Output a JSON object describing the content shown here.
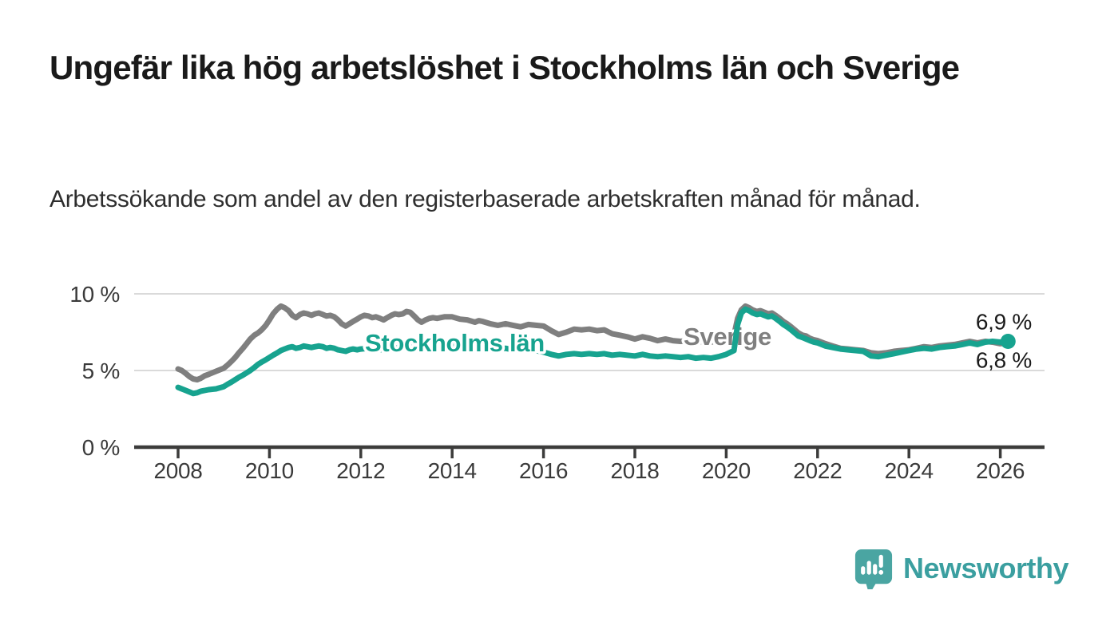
{
  "header": {
    "title": "Ungefär lika hög arbetslöshet i Stockholms län och Sverige",
    "subtitle": "Arbetssökande som andel av den registerbaserade arbetskraften månad för månad."
  },
  "footer": {
    "brand": "Newsworthy"
  },
  "colors": {
    "stockholm": "#17a38f",
    "sverige": "#7f7f7f",
    "axis": "#3c3c3b",
    "grid": "#dadada",
    "text": "#1a1a1a",
    "logo_badge": "#4aa5a2",
    "logo_text": "#3b9fa0"
  },
  "chart_data": {
    "type": "line",
    "title": "",
    "xlabel": "",
    "ylabel": "",
    "grid": "horizontal-only",
    "legend_position": "inline-labels",
    "x_range": [
      2007.0,
      2027.0
    ],
    "ylim": [
      0,
      10.5
    ],
    "x_ticks": [
      2008,
      2010,
      2012,
      2014,
      2016,
      2018,
      2020,
      2022,
      2024,
      2026
    ],
    "y_ticks": [
      {
        "value": 0,
        "label": "0 %"
      },
      {
        "value": 5,
        "label": "5 %"
      },
      {
        "value": 10,
        "label": "10 %"
      }
    ],
    "series": [
      {
        "name": "Sverige",
        "color_key": "sverige",
        "end_label": "6,8 %",
        "end_label_position": "below",
        "end_dot": false,
        "points": [
          [
            2008.0,
            5.1
          ],
          [
            2008.08,
            5.0
          ],
          [
            2008.17,
            4.8
          ],
          [
            2008.25,
            4.6
          ],
          [
            2008.33,
            4.45
          ],
          [
            2008.42,
            4.4
          ],
          [
            2008.5,
            4.5
          ],
          [
            2008.58,
            4.65
          ],
          [
            2008.67,
            4.75
          ],
          [
            2008.83,
            4.95
          ],
          [
            2009.0,
            5.15
          ],
          [
            2009.08,
            5.35
          ],
          [
            2009.17,
            5.6
          ],
          [
            2009.25,
            5.85
          ],
          [
            2009.33,
            6.15
          ],
          [
            2009.42,
            6.45
          ],
          [
            2009.5,
            6.75
          ],
          [
            2009.58,
            7.05
          ],
          [
            2009.67,
            7.3
          ],
          [
            2009.75,
            7.45
          ],
          [
            2009.83,
            7.65
          ],
          [
            2009.92,
            7.95
          ],
          [
            2010.0,
            8.3
          ],
          [
            2010.08,
            8.7
          ],
          [
            2010.17,
            9.0
          ],
          [
            2010.25,
            9.2
          ],
          [
            2010.33,
            9.1
          ],
          [
            2010.42,
            8.9
          ],
          [
            2010.5,
            8.6
          ],
          [
            2010.58,
            8.45
          ],
          [
            2010.67,
            8.65
          ],
          [
            2010.75,
            8.75
          ],
          [
            2010.83,
            8.7
          ],
          [
            2010.92,
            8.6
          ],
          [
            2011.0,
            8.7
          ],
          [
            2011.08,
            8.75
          ],
          [
            2011.17,
            8.65
          ],
          [
            2011.25,
            8.55
          ],
          [
            2011.33,
            8.6
          ],
          [
            2011.42,
            8.5
          ],
          [
            2011.5,
            8.3
          ],
          [
            2011.58,
            8.05
          ],
          [
            2011.67,
            7.9
          ],
          [
            2011.75,
            8.05
          ],
          [
            2011.83,
            8.2
          ],
          [
            2011.92,
            8.35
          ],
          [
            2012.0,
            8.5
          ],
          [
            2012.08,
            8.6
          ],
          [
            2012.17,
            8.55
          ],
          [
            2012.25,
            8.45
          ],
          [
            2012.33,
            8.5
          ],
          [
            2012.42,
            8.4
          ],
          [
            2012.5,
            8.3
          ],
          [
            2012.58,
            8.45
          ],
          [
            2012.67,
            8.6
          ],
          [
            2012.75,
            8.7
          ],
          [
            2012.83,
            8.65
          ],
          [
            2012.92,
            8.7
          ],
          [
            2013.0,
            8.85
          ],
          [
            2013.08,
            8.8
          ],
          [
            2013.17,
            8.55
          ],
          [
            2013.25,
            8.3
          ],
          [
            2013.33,
            8.15
          ],
          [
            2013.42,
            8.3
          ],
          [
            2013.5,
            8.4
          ],
          [
            2013.58,
            8.45
          ],
          [
            2013.67,
            8.4
          ],
          [
            2013.83,
            8.5
          ],
          [
            2014.0,
            8.5
          ],
          [
            2014.17,
            8.35
          ],
          [
            2014.33,
            8.3
          ],
          [
            2014.5,
            8.15
          ],
          [
            2014.58,
            8.25
          ],
          [
            2014.67,
            8.2
          ],
          [
            2014.83,
            8.05
          ],
          [
            2015.0,
            7.95
          ],
          [
            2015.17,
            8.05
          ],
          [
            2015.33,
            7.95
          ],
          [
            2015.5,
            7.85
          ],
          [
            2015.67,
            8.0
          ],
          [
            2015.83,
            7.95
          ],
          [
            2016.0,
            7.9
          ],
          [
            2016.17,
            7.6
          ],
          [
            2016.33,
            7.35
          ],
          [
            2016.5,
            7.5
          ],
          [
            2016.67,
            7.7
          ],
          [
            2016.83,
            7.65
          ],
          [
            2017.0,
            7.7
          ],
          [
            2017.17,
            7.6
          ],
          [
            2017.33,
            7.65
          ],
          [
            2017.5,
            7.4
          ],
          [
            2017.67,
            7.3
          ],
          [
            2017.83,
            7.2
          ],
          [
            2018.0,
            7.05
          ],
          [
            2018.17,
            7.2
          ],
          [
            2018.33,
            7.1
          ],
          [
            2018.5,
            6.95
          ],
          [
            2018.67,
            7.05
          ],
          [
            2018.83,
            6.95
          ],
          [
            2019.0,
            6.9
          ],
          [
            2019.17,
            6.95
          ],
          [
            2019.33,
            6.85
          ],
          [
            2019.5,
            6.9
          ],
          [
            2019.67,
            6.85
          ],
          [
            2019.83,
            6.95
          ],
          [
            2020.0,
            7.1
          ],
          [
            2020.17,
            7.3
          ],
          [
            2020.25,
            8.4
          ],
          [
            2020.33,
            8.95
          ],
          [
            2020.42,
            9.2
          ],
          [
            2020.5,
            9.1
          ],
          [
            2020.58,
            8.95
          ],
          [
            2020.67,
            8.85
          ],
          [
            2020.75,
            8.9
          ],
          [
            2020.83,
            8.8
          ],
          [
            2020.92,
            8.7
          ],
          [
            2021.0,
            8.75
          ],
          [
            2021.08,
            8.6
          ],
          [
            2021.17,
            8.4
          ],
          [
            2021.25,
            8.2
          ],
          [
            2021.33,
            8.05
          ],
          [
            2021.42,
            7.85
          ],
          [
            2021.5,
            7.65
          ],
          [
            2021.58,
            7.45
          ],
          [
            2021.67,
            7.3
          ],
          [
            2021.75,
            7.25
          ],
          [
            2021.83,
            7.1
          ],
          [
            2021.92,
            7.0
          ],
          [
            2022.0,
            6.95
          ],
          [
            2022.17,
            6.75
          ],
          [
            2022.33,
            6.6
          ],
          [
            2022.5,
            6.45
          ],
          [
            2022.67,
            6.4
          ],
          [
            2022.83,
            6.35
          ],
          [
            2023.0,
            6.3
          ],
          [
            2023.17,
            6.15
          ],
          [
            2023.33,
            6.1
          ],
          [
            2023.5,
            6.15
          ],
          [
            2023.67,
            6.25
          ],
          [
            2023.83,
            6.3
          ],
          [
            2024.0,
            6.35
          ],
          [
            2024.17,
            6.45
          ],
          [
            2024.33,
            6.55
          ],
          [
            2024.5,
            6.5
          ],
          [
            2024.67,
            6.6
          ],
          [
            2024.83,
            6.65
          ],
          [
            2025.0,
            6.7
          ],
          [
            2025.17,
            6.8
          ],
          [
            2025.33,
            6.9
          ],
          [
            2025.5,
            6.8
          ],
          [
            2025.67,
            6.9
          ],
          [
            2025.83,
            6.85
          ],
          [
            2026.0,
            6.75
          ],
          [
            2026.17,
            6.8
          ]
        ]
      },
      {
        "name": "Stockholms län",
        "color_key": "stockholm",
        "end_label": "6,9 %",
        "end_label_position": "above",
        "end_dot": true,
        "points": [
          [
            2008.0,
            3.9
          ],
          [
            2008.08,
            3.8
          ],
          [
            2008.17,
            3.7
          ],
          [
            2008.25,
            3.6
          ],
          [
            2008.33,
            3.5
          ],
          [
            2008.42,
            3.55
          ],
          [
            2008.5,
            3.65
          ],
          [
            2008.58,
            3.7
          ],
          [
            2008.67,
            3.75
          ],
          [
            2008.83,
            3.8
          ],
          [
            2009.0,
            3.95
          ],
          [
            2009.08,
            4.1
          ],
          [
            2009.17,
            4.25
          ],
          [
            2009.25,
            4.4
          ],
          [
            2009.33,
            4.55
          ],
          [
            2009.42,
            4.7
          ],
          [
            2009.5,
            4.85
          ],
          [
            2009.58,
            5.0
          ],
          [
            2009.67,
            5.2
          ],
          [
            2009.75,
            5.4
          ],
          [
            2009.83,
            5.55
          ],
          [
            2009.92,
            5.7
          ],
          [
            2010.0,
            5.85
          ],
          [
            2010.08,
            6.0
          ],
          [
            2010.17,
            6.15
          ],
          [
            2010.25,
            6.3
          ],
          [
            2010.33,
            6.4
          ],
          [
            2010.42,
            6.5
          ],
          [
            2010.5,
            6.55
          ],
          [
            2010.58,
            6.45
          ],
          [
            2010.67,
            6.5
          ],
          [
            2010.75,
            6.6
          ],
          [
            2010.83,
            6.55
          ],
          [
            2010.92,
            6.5
          ],
          [
            2011.0,
            6.55
          ],
          [
            2011.08,
            6.6
          ],
          [
            2011.17,
            6.55
          ],
          [
            2011.25,
            6.45
          ],
          [
            2011.33,
            6.5
          ],
          [
            2011.42,
            6.45
          ],
          [
            2011.5,
            6.35
          ],
          [
            2011.58,
            6.3
          ],
          [
            2011.67,
            6.25
          ],
          [
            2011.75,
            6.35
          ],
          [
            2011.83,
            6.4
          ],
          [
            2011.92,
            6.35
          ],
          [
            2012.0,
            6.4
          ],
          [
            2012.17,
            6.45
          ],
          [
            2012.33,
            6.4
          ],
          [
            2012.5,
            6.35
          ],
          [
            2012.67,
            6.45
          ],
          [
            2012.83,
            6.5
          ],
          [
            2013.0,
            6.6
          ],
          [
            2013.17,
            6.5
          ],
          [
            2013.33,
            6.45
          ],
          [
            2013.5,
            6.55
          ],
          [
            2013.67,
            6.6
          ],
          [
            2013.83,
            6.55
          ],
          [
            2014.0,
            6.6
          ],
          [
            2014.17,
            6.55
          ],
          [
            2014.33,
            6.5
          ],
          [
            2014.5,
            6.45
          ],
          [
            2014.67,
            6.5
          ],
          [
            2014.83,
            6.45
          ],
          [
            2015.0,
            6.4
          ],
          [
            2015.17,
            6.45
          ],
          [
            2015.33,
            6.35
          ],
          [
            2015.5,
            6.3
          ],
          [
            2015.67,
            6.35
          ],
          [
            2015.83,
            6.3
          ],
          [
            2016.0,
            6.2
          ],
          [
            2016.17,
            6.05
          ],
          [
            2016.33,
            5.95
          ],
          [
            2016.5,
            6.05
          ],
          [
            2016.67,
            6.1
          ],
          [
            2016.83,
            6.05
          ],
          [
            2017.0,
            6.1
          ],
          [
            2017.17,
            6.05
          ],
          [
            2017.33,
            6.1
          ],
          [
            2017.5,
            6.0
          ],
          [
            2017.67,
            6.05
          ],
          [
            2017.83,
            6.0
          ],
          [
            2018.0,
            5.95
          ],
          [
            2018.17,
            6.05
          ],
          [
            2018.33,
            5.95
          ],
          [
            2018.5,
            5.9
          ],
          [
            2018.67,
            5.95
          ],
          [
            2018.83,
            5.9
          ],
          [
            2019.0,
            5.85
          ],
          [
            2019.17,
            5.9
          ],
          [
            2019.33,
            5.8
          ],
          [
            2019.5,
            5.85
          ],
          [
            2019.67,
            5.8
          ],
          [
            2019.83,
            5.9
          ],
          [
            2020.0,
            6.05
          ],
          [
            2020.17,
            6.3
          ],
          [
            2020.25,
            8.0
          ],
          [
            2020.33,
            8.75
          ],
          [
            2020.42,
            9.0
          ],
          [
            2020.5,
            8.9
          ],
          [
            2020.58,
            8.75
          ],
          [
            2020.67,
            8.65
          ],
          [
            2020.75,
            8.7
          ],
          [
            2020.83,
            8.6
          ],
          [
            2020.92,
            8.5
          ],
          [
            2021.0,
            8.55
          ],
          [
            2021.08,
            8.4
          ],
          [
            2021.17,
            8.2
          ],
          [
            2021.25,
            8.0
          ],
          [
            2021.33,
            7.85
          ],
          [
            2021.42,
            7.65
          ],
          [
            2021.5,
            7.45
          ],
          [
            2021.58,
            7.25
          ],
          [
            2021.67,
            7.15
          ],
          [
            2021.75,
            7.05
          ],
          [
            2021.83,
            6.95
          ],
          [
            2021.92,
            6.85
          ],
          [
            2022.0,
            6.8
          ],
          [
            2022.17,
            6.6
          ],
          [
            2022.33,
            6.5
          ],
          [
            2022.5,
            6.4
          ],
          [
            2022.67,
            6.35
          ],
          [
            2022.83,
            6.3
          ],
          [
            2023.0,
            6.25
          ],
          [
            2023.17,
            5.95
          ],
          [
            2023.33,
            5.9
          ],
          [
            2023.5,
            6.0
          ],
          [
            2023.67,
            6.1
          ],
          [
            2023.83,
            6.2
          ],
          [
            2024.0,
            6.3
          ],
          [
            2024.17,
            6.4
          ],
          [
            2024.33,
            6.45
          ],
          [
            2024.5,
            6.4
          ],
          [
            2024.67,
            6.5
          ],
          [
            2024.83,
            6.55
          ],
          [
            2025.0,
            6.6
          ],
          [
            2025.17,
            6.7
          ],
          [
            2025.33,
            6.8
          ],
          [
            2025.5,
            6.7
          ],
          [
            2025.67,
            6.85
          ],
          [
            2025.83,
            6.9
          ],
          [
            2026.0,
            6.85
          ],
          [
            2026.17,
            6.9
          ]
        ]
      }
    ]
  }
}
